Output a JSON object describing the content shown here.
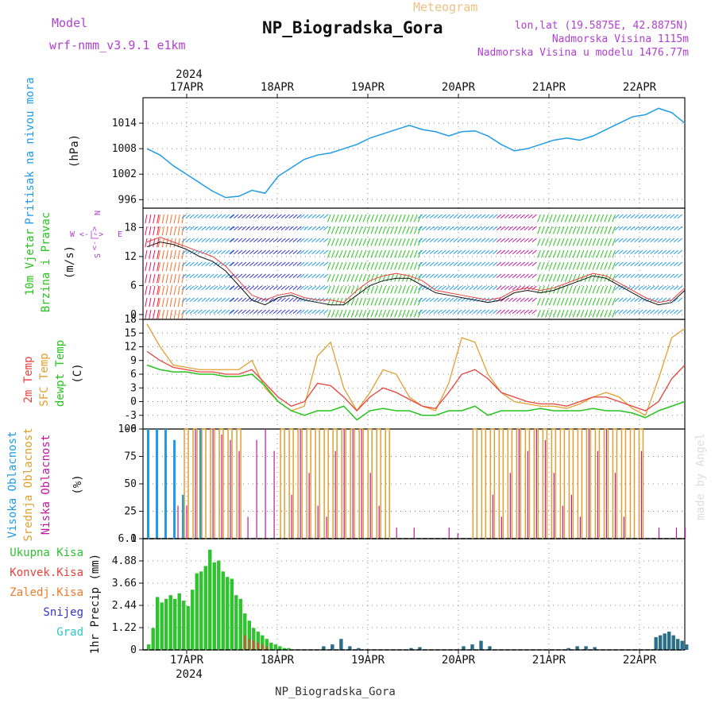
{
  "header": {
    "model_label": "Model",
    "model_name": "wrf-nmm_v3.9.1 e1km",
    "meteogram_label": "Meteogram",
    "station_title": "NP_Biogradska_Gora",
    "lonlat": "lon,lat (19.5875E, 42.8875N)",
    "elevation": "Nadmorska Visina 1115m",
    "model_elevation": "Nadmorska Visina u modelu 1476.77m",
    "footer_station": "NP_Biogradska_Gora",
    "watermark": "made by Angel"
  },
  "colors": {
    "pressure": "#1f9be8",
    "temp2m": "#e8423c",
    "sfc_temp": "#e0a030",
    "dewpt": "#27c41f",
    "high_cloud": "#1f9be8",
    "mid_cloud": "#e0a030",
    "low_cloud": "#c0179e",
    "precip_total": "#2fc32f",
    "precip_conv": "#e8423c",
    "precip_frozen": "#ef7a2a",
    "snow": "#3333cc",
    "graupel": "#2ec6c6",
    "model_purple": "#b040d0"
  },
  "chart_data": [
    {
      "id": "pressure",
      "type": "line",
      "ylabel_left": "Pritisak na nivou mora",
      "ylabel_unit": "(hPa)",
      "ylim": [
        994,
        1020
      ],
      "yticks": [
        "996",
        "1002",
        "1008",
        "1014"
      ],
      "x": [
        0,
        3,
        6,
        9,
        12,
        15,
        18,
        21,
        24,
        27,
        30,
        33,
        36,
        39,
        42,
        45,
        48,
        51,
        54,
        57,
        60,
        63,
        66,
        69,
        72,
        75,
        78,
        81,
        84,
        87,
        90,
        93,
        96,
        99,
        102,
        105,
        108,
        111,
        114,
        117,
        120,
        123
      ],
      "series": [
        {
          "values": [
            1008,
            1006.5,
            1004,
            1002,
            1000,
            998,
            996.5,
            996.8,
            998.2,
            997.5,
            1001.5,
            1003.5,
            1005.5,
            1006.5,
            1007,
            1008,
            1009,
            1010.5,
            1011.5,
            1012.5,
            1013.5,
            1012.5,
            1012,
            1011,
            1012,
            1012.2,
            1011,
            1009,
            1007.5,
            1008,
            1009,
            1010,
            1010.5,
            1010,
            1011,
            1012.5,
            1014,
            1015.5,
            1016,
            1017.5,
            1016.5,
            1014
          ]
        }
      ]
    },
    {
      "id": "wind",
      "type": "line",
      "ylabel_left_1": "10m Vjetar",
      "ylabel_left_2": "Brzina i Pravac",
      "ylabel_unit": "(m/s)",
      "compass": {
        "n": "N",
        "s": "S",
        "e": "E",
        "w": "W"
      },
      "ylim": [
        -1,
        22
      ],
      "yticks": [
        "0",
        "6",
        "12",
        "18"
      ],
      "x": [
        0,
        3,
        6,
        9,
        12,
        15,
        18,
        21,
        24,
        27,
        30,
        33,
        36,
        39,
        42,
        45,
        48,
        51,
        54,
        57,
        60,
        63,
        66,
        69,
        72,
        75,
        78,
        81,
        84,
        87,
        90,
        93,
        96,
        99,
        102,
        105,
        108,
        111,
        114,
        117,
        120,
        123
      ],
      "series": [
        {
          "name": "speed",
          "values": [
            14,
            15,
            14.5,
            13.5,
            12,
            11,
            9,
            6,
            3,
            2,
            3.5,
            4,
            3,
            2.5,
            2,
            2,
            4,
            6,
            7,
            7.5,
            7.5,
            6,
            4.5,
            4,
            3.5,
            3,
            2.5,
            3,
            4.5,
            5,
            4.5,
            5,
            6,
            7,
            8,
            7.5,
            6,
            4.5,
            3,
            2,
            2.5,
            5
          ]
        },
        {
          "name": "gust",
          "values": [
            15,
            16,
            15,
            14,
            13,
            12,
            10,
            7,
            4,
            3,
            4,
            4.5,
            3.5,
            3,
            3,
            2.5,
            5,
            7,
            8,
            8.5,
            8,
            7,
            5,
            4.5,
            4,
            3.5,
            3,
            3.5,
            5,
            5.5,
            5,
            5.5,
            6.5,
            7.5,
            8.5,
            8,
            6.5,
            5,
            3.5,
            2.5,
            3,
            5.5
          ]
        }
      ],
      "barb_colors": [
        "#e8175d",
        "#ff6b2a",
        "#f5c13b",
        "#1f9be8",
        "#3333cc",
        "#27c41f",
        "#2ec6c6",
        "#c0179e"
      ],
      "barb_segments": [
        [
          0,
          3,
          "#e8175d"
        ],
        [
          3,
          9,
          "#ff6b2a"
        ],
        [
          9,
          20,
          "#1f9be8"
        ],
        [
          20,
          36,
          "#3333cc"
        ],
        [
          36,
          42,
          "#1f9be8"
        ],
        [
          42,
          63,
          "#27c41f"
        ],
        [
          63,
          81,
          "#1f9be8"
        ],
        [
          81,
          90,
          "#c0179e"
        ],
        [
          90,
          108,
          "#27c41f"
        ],
        [
          108,
          123,
          "#1f9be8"
        ]
      ]
    },
    {
      "id": "temperature",
      "type": "line",
      "ylabel_left_1": "2m Temp",
      "ylabel_left_2": "SFC Temp",
      "ylabel_left_3": "dewpt Temp",
      "ylabel_unit": "(C)",
      "ylim": [
        -6,
        18
      ],
      "yticks": [
        "-6",
        "-3",
        "0",
        "3",
        "6",
        "9",
        "12",
        "15",
        "18"
      ],
      "x": [
        0,
        3,
        6,
        9,
        12,
        15,
        18,
        21,
        24,
        27,
        30,
        33,
        36,
        39,
        42,
        45,
        48,
        51,
        54,
        57,
        60,
        63,
        66,
        69,
        72,
        75,
        78,
        81,
        84,
        87,
        90,
        93,
        96,
        99,
        102,
        105,
        108,
        111,
        114,
        117,
        120,
        123
      ],
      "series": [
        {
          "name": "2m Temp",
          "values": [
            11,
            9,
            7.5,
            7,
            6.5,
            6.5,
            6,
            6,
            7,
            4,
            1,
            -1,
            0,
            4,
            3.5,
            1,
            -2,
            1,
            3,
            2,
            0.5,
            -1,
            -1.5,
            2,
            6,
            7,
            5,
            2,
            1,
            0,
            -0.5,
            -0.5,
            -1,
            0,
            1,
            1,
            0,
            -1,
            -2,
            0,
            5,
            8
          ]
        },
        {
          "name": "SFC Temp",
          "values": [
            17,
            12,
            8,
            7.5,
            7,
            7,
            7,
            7,
            9,
            3,
            0,
            -2,
            -1,
            10,
            13,
            3,
            -2,
            2,
            7,
            6,
            1,
            -1,
            -2,
            4,
            14,
            13,
            6,
            2,
            0,
            -0.5,
            -1,
            -1,
            -1.5,
            -0.5,
            1,
            2,
            1,
            -1.5,
            -3,
            5,
            14,
            16
          ]
        },
        {
          "name": "dewpt Temp",
          "values": [
            8,
            7,
            6.5,
            6.5,
            6,
            6,
            5.5,
            5.5,
            6,
            3.5,
            0,
            -2,
            -3,
            -2,
            -2,
            -1,
            -4,
            -2,
            -1.5,
            -2,
            -2,
            -3,
            -3,
            -2,
            -2,
            -1,
            -3,
            -2,
            -2,
            -2,
            -1.5,
            -2,
            -2,
            -2,
            -1.5,
            -2,
            -2,
            -2.5,
            -3.5,
            -2,
            -1,
            0
          ]
        }
      ]
    },
    {
      "id": "cloud",
      "type": "bar",
      "ylabel_left_1": "Visoka Oblacnost",
      "ylabel_left_2": "Srednja Oblacnost",
      "ylabel_left_3": "Niska Oblacnost",
      "ylabel_unit": "(%)",
      "ylim": [
        0,
        100
      ],
      "yticks": [
        "0",
        "25",
        "50",
        "75",
        "100"
      ],
      "x": [
        0,
        2,
        4,
        6,
        8,
        10,
        12,
        14,
        16,
        18,
        20,
        22,
        24,
        26,
        28,
        30,
        32,
        34,
        36,
        38,
        40,
        42,
        44,
        46,
        48,
        50,
        52,
        54,
        56,
        58,
        60,
        62,
        64,
        66,
        68,
        70,
        72,
        74,
        76,
        78,
        80,
        82,
        84,
        86,
        88,
        90,
        92,
        94,
        96,
        98,
        100,
        102,
        104,
        106,
        108,
        110,
        112,
        114,
        116,
        118,
        120,
        122
      ],
      "series": [
        {
          "name": "high",
          "values": [
            100,
            100,
            100,
            90,
            40,
            0,
            100,
            0,
            0,
            0,
            0,
            0,
            0,
            0,
            0,
            0,
            0,
            0,
            0,
            0,
            0,
            0,
            0,
            0,
            0,
            0,
            0,
            0,
            0,
            0,
            0,
            0,
            0,
            0,
            0,
            0,
            0,
            0,
            0,
            0,
            0,
            0,
            0,
            0,
            0,
            0,
            0,
            0,
            0,
            0,
            0,
            0,
            0,
            0,
            0,
            0,
            0,
            0,
            0,
            0,
            0,
            0
          ]
        },
        {
          "name": "mid",
          "values": [
            0,
            0,
            0,
            0,
            100,
            100,
            100,
            100,
            100,
            100,
            100,
            0,
            0,
            0,
            0,
            100,
            100,
            100,
            100,
            100,
            100,
            100,
            100,
            100,
            100,
            100,
            100,
            100,
            0,
            0,
            0,
            0,
            0,
            0,
            0,
            0,
            0,
            100,
            100,
            100,
            100,
            100,
            100,
            100,
            100,
            100,
            100,
            100,
            100,
            100,
            100,
            100,
            100,
            100,
            100,
            100,
            100,
            0,
            0,
            0,
            0,
            0
          ]
        },
        {
          "name": "low",
          "values": [
            0,
            0,
            0,
            30,
            30,
            100,
            0,
            100,
            95,
            90,
            80,
            20,
            90,
            100,
            80,
            0,
            40,
            100,
            60,
            30,
            20,
            80,
            100,
            100,
            100,
            60,
            30,
            0,
            10,
            0,
            10,
            0,
            0,
            0,
            10,
            5,
            0,
            0,
            0,
            40,
            20,
            60,
            100,
            80,
            100,
            90,
            60,
            30,
            40,
            20,
            100,
            80,
            100,
            60,
            20,
            0,
            80,
            0,
            10,
            0,
            10,
            10
          ]
        }
      ]
    },
    {
      "id": "precip",
      "type": "bar",
      "ylabel_unit": "1hr Precip (mm)",
      "legend": [
        "Ukupna Kisa",
        "Konvek.Kisa",
        "Zaledj.Kisa",
        "Snijeg",
        "Grad"
      ],
      "ylim": [
        0,
        6.1
      ],
      "yticks": [
        "0",
        "1.22",
        "2.44",
        "3.66",
        "4.88",
        "6.1"
      ],
      "x": [
        0,
        1,
        2,
        3,
        4,
        5,
        6,
        7,
        8,
        9,
        10,
        11,
        12,
        13,
        14,
        15,
        16,
        17,
        18,
        19,
        20,
        21,
        22,
        23,
        24,
        25,
        26,
        27,
        28,
        29,
        30,
        31,
        32
      ],
      "series": [
        {
          "name": "Ukupna Kisa",
          "values": [
            0.3,
            1.2,
            2.9,
            2.6,
            2.8,
            3.0,
            2.8,
            3.1,
            2.7,
            2.4,
            3.3,
            4.2,
            4.3,
            4.6,
            5.5,
            4.8,
            4.9,
            4.3,
            4.0,
            3.9,
            3.0,
            2.8,
            2.0,
            1.6,
            1.2,
            1.0,
            0.8,
            0.6,
            0.4,
            0.3,
            0.2,
            0.1,
            0.1
          ]
        },
        {
          "name": "Konvek.Kisa",
          "values": [
            0,
            0,
            0,
            0,
            0,
            0,
            0,
            0,
            0,
            0,
            0,
            0,
            0,
            0,
            0,
            0,
            0,
            0,
            0,
            0,
            0,
            0,
            0.8,
            0.6,
            0.5,
            0.4,
            0.3,
            0.2,
            0,
            0,
            0,
            0,
            0
          ]
        }
      ],
      "late_events": [
        [
          40,
          0.2
        ],
        [
          42,
          0.3
        ],
        [
          44,
          0.6
        ],
        [
          46,
          0.2
        ],
        [
          48,
          0.1
        ],
        [
          60,
          0.1
        ],
        [
          62,
          0.15
        ],
        [
          72,
          0.2
        ],
        [
          74,
          0.3
        ],
        [
          76,
          0.5
        ],
        [
          78,
          0.2
        ],
        [
          96,
          0.1
        ],
        [
          98,
          0.2
        ],
        [
          100,
          0.2
        ],
        [
          102,
          0.15
        ],
        [
          116,
          0.7
        ],
        [
          117,
          0.8
        ],
        [
          118,
          0.9
        ],
        [
          119,
          1.0
        ],
        [
          120,
          0.8
        ],
        [
          121,
          0.6
        ],
        [
          122,
          0.5
        ],
        [
          123,
          0.3
        ]
      ]
    }
  ],
  "axis": {
    "year_top": "2024",
    "year_bottom": "2024",
    "days": [
      "17APR",
      "18APR",
      "19APR",
      "20APR",
      "21APR",
      "22APR"
    ]
  }
}
